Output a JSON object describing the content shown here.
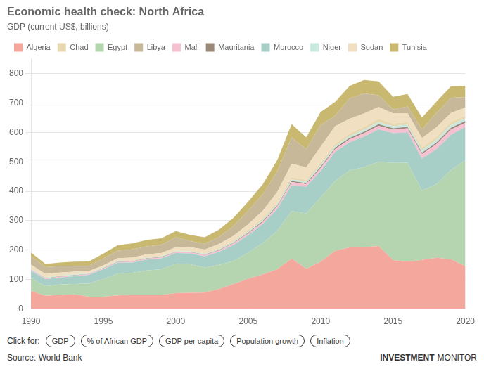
{
  "chart_data": {
    "type": "area",
    "title": "Economic health check: North Africa",
    "subtitle": "GDP (current US$, billions)",
    "x": [
      1990,
      1991,
      1992,
      1993,
      1994,
      1995,
      1996,
      1997,
      1998,
      1999,
      2000,
      2001,
      2002,
      2003,
      2004,
      2005,
      2006,
      2007,
      2008,
      2009,
      2010,
      2011,
      2012,
      2013,
      2014,
      2015,
      2016,
      2017,
      2018,
      2019,
      2020
    ],
    "series": [
      {
        "name": "Algeria",
        "color": "#f4a79d",
        "values": [
          62,
          45,
          48,
          50,
          42,
          42,
          46,
          48,
          48,
          48,
          54,
          55,
          56,
          68,
          85,
          103,
          117,
          135,
          171,
          137,
          161,
          198,
          209,
          210,
          214,
          166,
          161,
          167,
          174,
          169,
          145
        ]
      },
      {
        "name": "Egypt",
        "color": "#b5d5b0",
        "values": [
          43,
          33,
          35,
          35,
          45,
          60,
          75,
          75,
          83,
          87,
          99,
          97,
          85,
          82,
          78,
          89,
          107,
          130,
          162,
          188,
          218,
          236,
          262,
          272,
          286,
          330,
          336,
          235,
          250,
          303,
          361
        ]
      },
      {
        "name": "Morocco",
        "color": "#a8cec8",
        "values": [
          25,
          23,
          24,
          26,
          29,
          33,
          36,
          35,
          37,
          37,
          37,
          37,
          38,
          44,
          55,
          59,
          65,
          75,
          88,
          90,
          90,
          99,
          95,
          104,
          110,
          101,
          103,
          109,
          119,
          120,
          112
        ]
      },
      {
        "name": "Mali",
        "color": "#f5c0d0",
        "values": [
          2.5,
          2.3,
          2.5,
          2.5,
          2.2,
          2.6,
          2.9,
          2.8,
          2.9,
          3.2,
          3.5,
          3.5,
          4.3,
          5.3,
          6.0,
          6.0,
          6.5,
          8.0,
          10.0,
          9.0,
          10.0,
          10.5,
          10.5,
          11.0,
          12.0,
          12.0,
          14.0,
          15.0,
          17.0,
          17.5,
          15.0
        ]
      },
      {
        "name": "Mauritania",
        "color": "#9a8878",
        "values": [
          1.1,
          1.1,
          1.2,
          1.2,
          1.1,
          1.2,
          1.2,
          1.1,
          1.2,
          1.1,
          1.1,
          1.2,
          1.3,
          1.6,
          2.0,
          2.4,
          3.1,
          3.5,
          4.0,
          3.5,
          4.0,
          4.2,
          4.5,
          5.0,
          5.5,
          4.8,
          4.5,
          5.0,
          5.5,
          6.0,
          5.5
        ]
      },
      {
        "name": "Niger",
        "color": "#c8e8e0",
        "values": [
          2.5,
          2.3,
          2.5,
          2.5,
          2.0,
          2.0,
          2.0,
          2.0,
          2.0,
          2.0,
          2.2,
          2.1,
          2.2,
          2.5,
          2.9,
          3.4,
          3.8,
          4.2,
          5.0,
          4.8,
          5.5,
          5.5,
          6.0,
          7.0,
          7.5,
          7.5,
          7.5,
          8.0,
          9.0,
          9.5,
          8.5
        ]
      },
      {
        "name": "Chad",
        "color": "#e8d8b0",
        "values": [
          1.7,
          1.6,
          1.7,
          1.5,
          1.3,
          1.6,
          1.6,
          1.7,
          1.7,
          1.6,
          1.7,
          1.8,
          2.0,
          2.5,
          3.5,
          5.0,
          6.0,
          6.5,
          8.0,
          6.5,
          7.5,
          8.0,
          9.0,
          10.0,
          11.0,
          9.5,
          9.0,
          9.5,
          10.0,
          10.5,
          9.5
        ]
      },
      {
        "name": "Sudan",
        "color": "#f0dfc0",
        "values": [
          13,
          11,
          9,
          8,
          6,
          6,
          8,
          9,
          10,
          10,
          11,
          12,
          13,
          15,
          17,
          20,
          25,
          35,
          45,
          42,
          55,
          60,
          50,
          45,
          40,
          34,
          30,
          32,
          33,
          30,
          28
        ]
      },
      {
        "name": "Libya",
        "color": "#c8b89a",
        "values": [
          29,
          23,
          22,
          20,
          18,
          23,
          26,
          28,
          27,
          28,
          34,
          21,
          20,
          24,
          33,
          47,
          56,
          69,
          90,
          62,
          74,
          35,
          70,
          68,
          40,
          13,
          23,
          30,
          48,
          52,
          35
        ]
      },
      {
        "name": "Tunisia",
        "color": "#c8b870",
        "values": [
          12,
          11,
          12,
          14,
          15,
          17,
          18,
          20,
          22,
          22,
          21,
          21,
          22,
          25,
          28,
          30,
          34,
          39,
          45,
          40,
          44,
          47,
          42,
          46,
          47,
          43,
          42,
          40,
          39,
          39,
          39
        ]
      }
    ],
    "stacked": true,
    "xlim": [
      1990,
      2020
    ],
    "xticks": [
      1990,
      1995,
      2000,
      2005,
      2010,
      2015,
      2020
    ],
    "ylim": [
      0,
      850
    ],
    "yticks": [
      0,
      100,
      200,
      300,
      400,
      500,
      600,
      700,
      800
    ],
    "grid": "y",
    "legend": "top",
    "annotations": [
      [
        "Click for:",
        "GDP",
        "% of African GDP",
        "GDP per capita",
        "Population growth",
        "Inflation"
      ],
      [
        "Source: World Bank",
        "INVESTMENT",
        "MONITOR"
      ]
    ]
  }
}
